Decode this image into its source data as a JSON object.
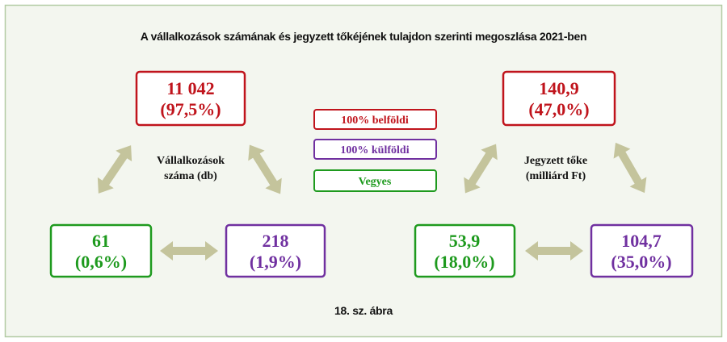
{
  "header": {
    "title": "A vállalkozások számának és jegyzett tőkéjének tulajdon szerinti megoszlása 2021-ben"
  },
  "legend": [
    "100% belföldi",
    "100% külföldi",
    "Vegyes"
  ],
  "left": {
    "label": [
      "Vállalkozások",
      "száma (db)"
    ],
    "domestic": [
      "11 042",
      "(97,5%)"
    ],
    "mixed": [
      "61",
      "(0,6%)"
    ],
    "foreign": [
      "218",
      "(1,9%)"
    ]
  },
  "right": {
    "label": [
      "Jegyzett tőke",
      "(milliárd Ft)"
    ],
    "domestic": [
      "140,9",
      "(47,0%)"
    ],
    "mixed": [
      "53,9",
      "(18,0%)"
    ],
    "foreign": [
      "104,7",
      "(35,0%)"
    ]
  },
  "caption": "18. sz. ábra"
}
